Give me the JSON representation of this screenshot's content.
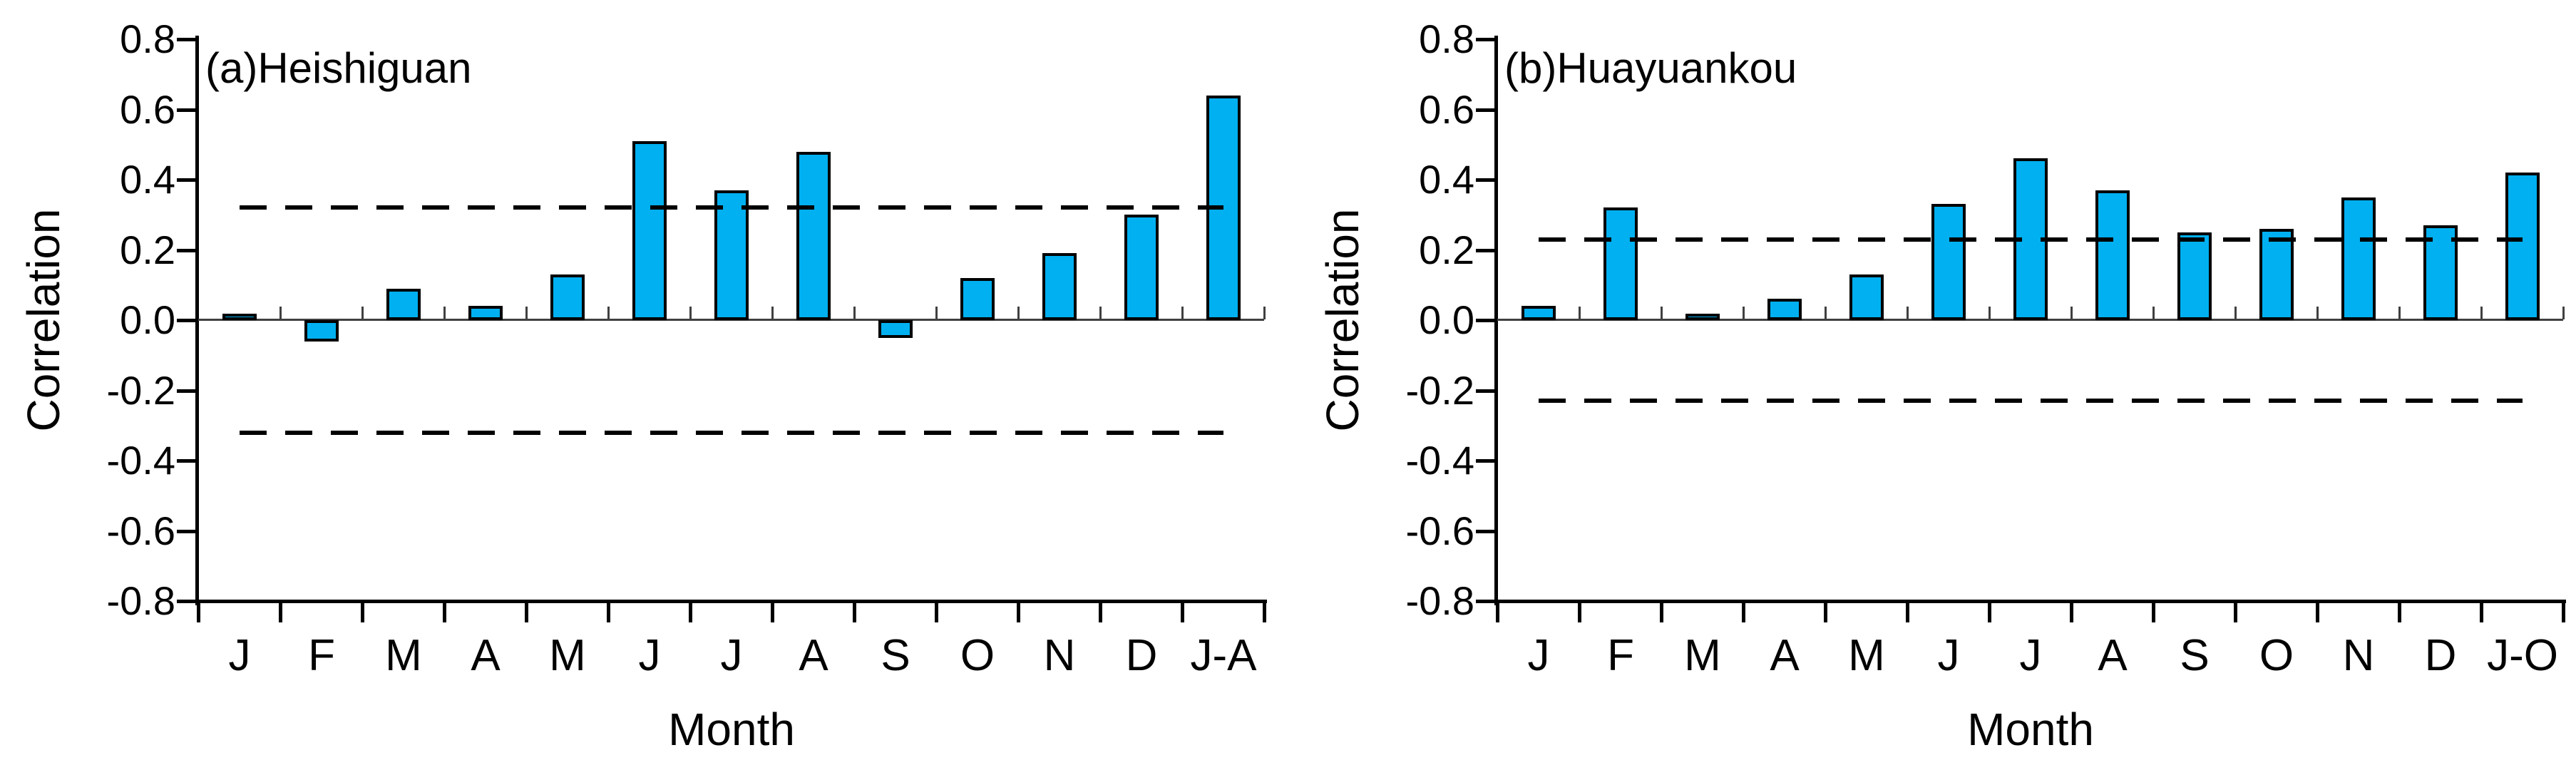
{
  "figure": {
    "background": "#ffffff",
    "bar_fill_color": "#00B0F0",
    "bar_border_color": "#000000",
    "axis_color": "#000000",
    "zero_line_color": "#404040",
    "threshold_line_color": "#000000",
    "text_color": "#000000"
  },
  "chart_data": [
    {
      "type": "bar",
      "panel_label": "(a)Heishiguan",
      "ylabel": "Correlation",
      "xlabel": "Month",
      "ylim": [
        -0.8,
        0.8
      ],
      "ytick_step": 0.2,
      "ytick_labels": [
        "0.8",
        "0.6",
        "0.4",
        "0.2",
        "0.0",
        "-0.2",
        "-0.4",
        "-0.6",
        "-0.8"
      ],
      "categories": [
        "J",
        "F",
        "M",
        "A",
        "M",
        "J",
        "J",
        "A",
        "S",
        "O",
        "N",
        "D",
        "J-A"
      ],
      "values": [
        0.01,
        -0.06,
        0.09,
        0.04,
        0.13,
        0.51,
        0.37,
        0.48,
        -0.05,
        0.12,
        0.19,
        0.3,
        0.64
      ],
      "threshold_lines": [
        0.32,
        -0.32
      ],
      "grid": false,
      "legend_position": "none"
    },
    {
      "type": "bar",
      "panel_label": "(b)Huayuankou",
      "ylabel": "Correlation",
      "xlabel": "Month",
      "ylim": [
        -0.8,
        0.8
      ],
      "ytick_step": 0.2,
      "ytick_labels": [
        "0.8",
        "0.6",
        "0.4",
        "0.2",
        "0.0",
        "-0.2",
        "-0.4",
        "-0.6",
        "-0.8"
      ],
      "categories": [
        "J",
        "F",
        "M",
        "A",
        "M",
        "J",
        "J",
        "A",
        "S",
        "O",
        "N",
        "D",
        "J-O"
      ],
      "values": [
        0.04,
        0.32,
        0.01,
        0.06,
        0.13,
        0.33,
        0.46,
        0.37,
        0.25,
        0.26,
        0.35,
        0.27,
        0.42
      ],
      "threshold_lines": [
        0.23,
        -0.23
      ],
      "grid": false,
      "legend_position": "none"
    }
  ]
}
